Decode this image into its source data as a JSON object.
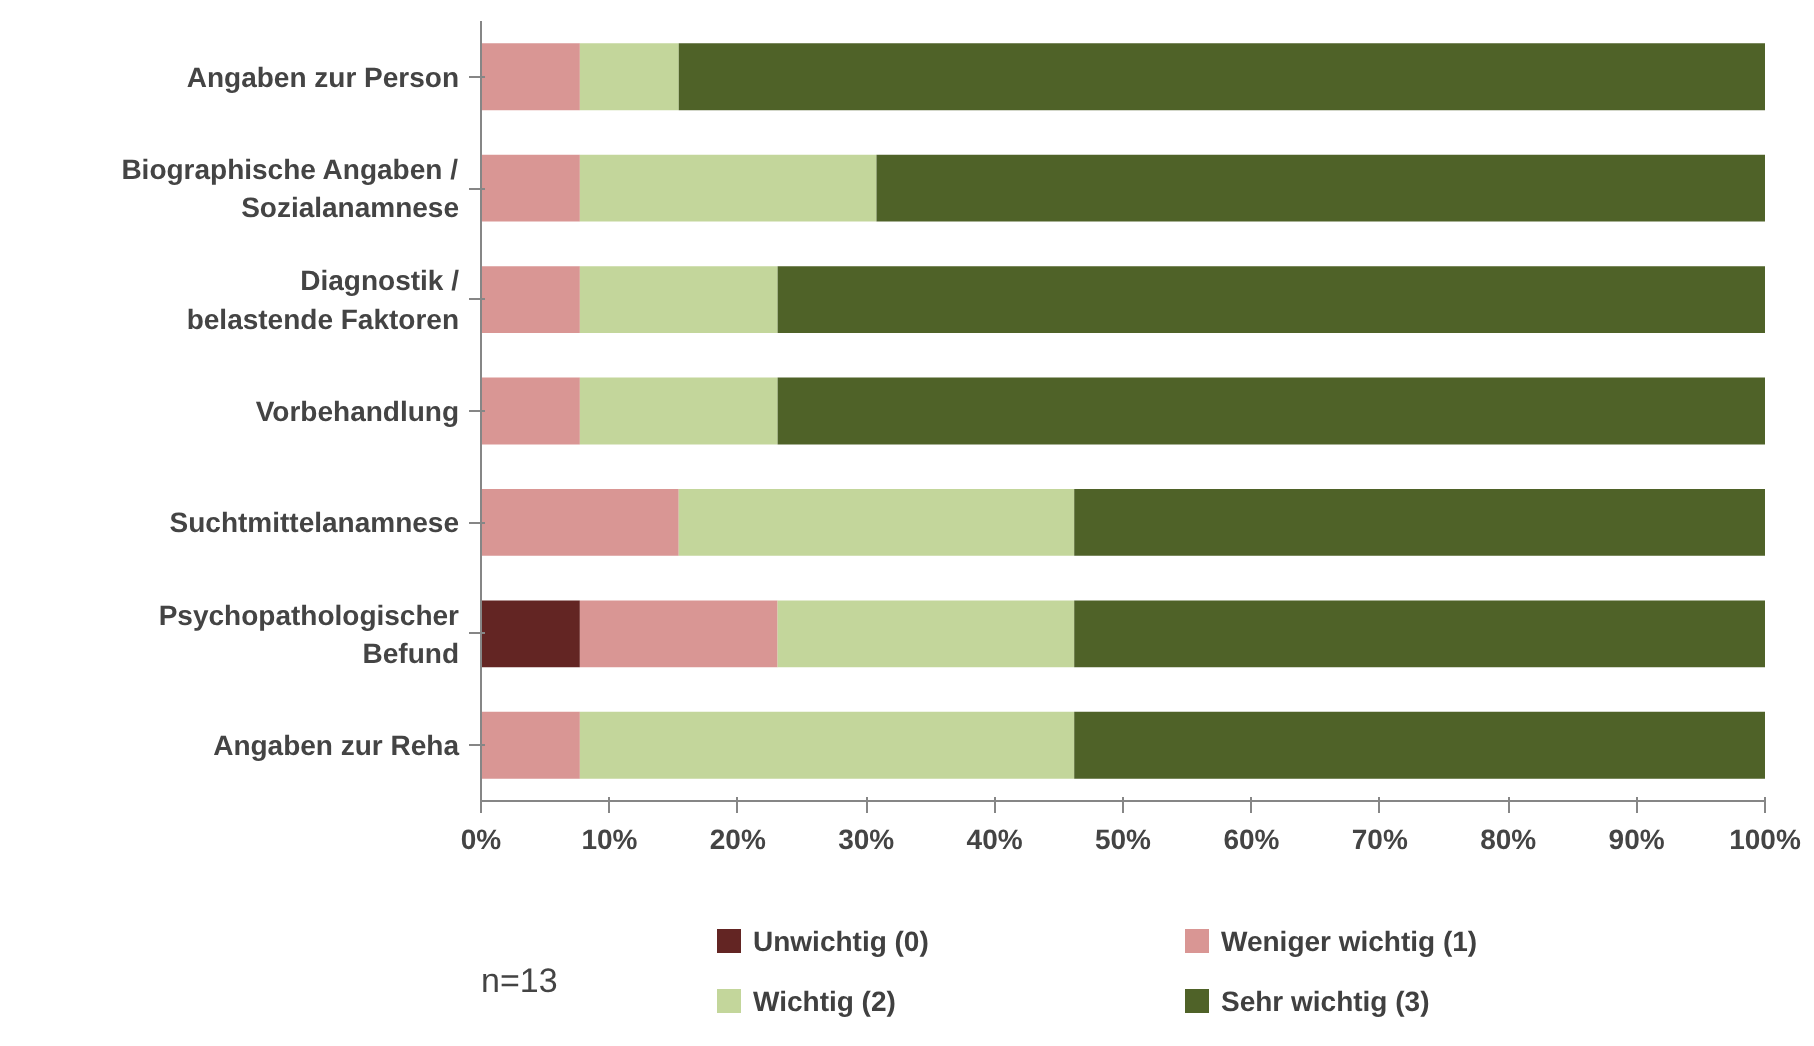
{
  "chart_data": {
    "type": "bar",
    "orientation": "horizontal",
    "stacked": true,
    "categories": [
      "Angaben zur Person",
      "Biographische Angaben /\nSozialanamnese",
      "Diagnostik /\nbelastende Faktoren",
      "Vorbehandlung",
      "Suchtmittelanamnese",
      "Psychopathologischer\nBefund",
      "Angaben zur Reha"
    ],
    "series": [
      {
        "name": "Unwichtig (0)",
        "color": "#632523",
        "values": [
          0,
          0,
          0,
          0,
          0,
          7.7,
          0
        ]
      },
      {
        "name": "Weniger wichtig (1)",
        "color": "#d99694",
        "values": [
          7.7,
          7.7,
          7.7,
          7.7,
          15.4,
          15.4,
          7.7
        ]
      },
      {
        "name": "Wichtig (2)",
        "color": "#c3d69b",
        "values": [
          7.7,
          23.1,
          15.4,
          15.4,
          30.8,
          23.1,
          38.5
        ]
      },
      {
        "name": "Sehr wichtig (3)",
        "color": "#4f6228",
        "values": [
          84.6,
          69.2,
          76.9,
          76.9,
          53.8,
          53.8,
          53.8
        ]
      }
    ],
    "xlim": [
      0,
      100
    ],
    "xticks": [
      {
        "value": 0,
        "label": "0%"
      },
      {
        "value": 10,
        "label": "10%"
      },
      {
        "value": 20,
        "label": "20%"
      },
      {
        "value": 30,
        "label": "30%"
      },
      {
        "value": 40,
        "label": "40%"
      },
      {
        "value": 50,
        "label": "50%"
      },
      {
        "value": 60,
        "label": "60%"
      },
      {
        "value": 70,
        "label": "70%"
      },
      {
        "value": 80,
        "label": "80%"
      },
      {
        "value": 90,
        "label": "90%"
      },
      {
        "value": 100,
        "label": "100%"
      }
    ],
    "grid": false,
    "legend": "bottom",
    "annotations": [
      "n=13"
    ]
  }
}
